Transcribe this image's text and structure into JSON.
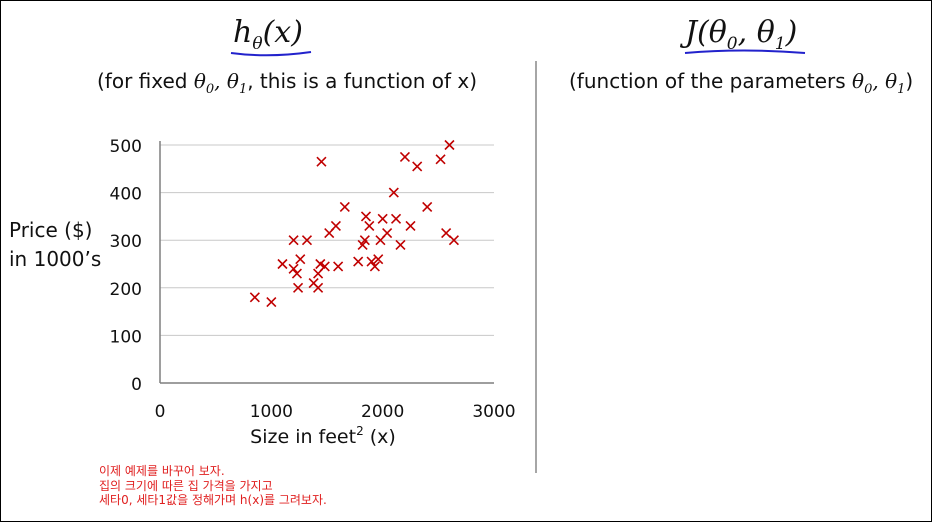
{
  "left_header": {
    "title": "hθ(x)",
    "subtitle_prefix": "(for fixed ",
    "subtitle_math": "θ0, θ1",
    "subtitle_suffix": ", this is a function of x)"
  },
  "right_header": {
    "title": "J(θ0, θ1)",
    "subtitle_text": "(function of the parameters ",
    "subtitle_math": "θ0, θ1",
    "subtitle_suffix": ")"
  },
  "note_lines": [
    "이제 예제를 바꾸어 보자.",
    "집의 크기에 따른 집 가격을 가지고",
    "세타0, 세타1값을 정해가며 h(x)를 그려보자."
  ],
  "colors": {
    "accent": "#2222cc",
    "marker": "#c00000",
    "grid": "#c8c8c8",
    "note": "#e02020"
  },
  "chart_data": {
    "type": "scatter",
    "xlabel": "Size in feet² (x)",
    "ylabel_lines": [
      "Price ($)",
      "in 1000’s"
    ],
    "xlim": [
      0,
      3000
    ],
    "ylim": [
      0,
      500
    ],
    "xticks": [
      0,
      1000,
      2000,
      3000
    ],
    "yticks": [
      0,
      100,
      200,
      300,
      400,
      500
    ],
    "grid": "horizontal",
    "marker": "x",
    "points": [
      [
        852,
        180
      ],
      [
        1000,
        170
      ],
      [
        1100,
        250
      ],
      [
        1200,
        300
      ],
      [
        1200,
        240
      ],
      [
        1230,
        230
      ],
      [
        1240,
        200
      ],
      [
        1260,
        260
      ],
      [
        1320,
        300
      ],
      [
        1380,
        210
      ],
      [
        1420,
        230
      ],
      [
        1420,
        200
      ],
      [
        1440,
        250
      ],
      [
        1450,
        465
      ],
      [
        1480,
        245
      ],
      [
        1520,
        315
      ],
      [
        1580,
        330
      ],
      [
        1600,
        245
      ],
      [
        1660,
        370
      ],
      [
        1780,
        255
      ],
      [
        1820,
        290
      ],
      [
        1840,
        300
      ],
      [
        1850,
        350
      ],
      [
        1880,
        330
      ],
      [
        1900,
        255
      ],
      [
        1930,
        245
      ],
      [
        1960,
        260
      ],
      [
        1980,
        300
      ],
      [
        2000,
        345
      ],
      [
        2040,
        315
      ],
      [
        2100,
        400
      ],
      [
        2120,
        345
      ],
      [
        2160,
        290
      ],
      [
        2200,
        475
      ],
      [
        2250,
        330
      ],
      [
        2310,
        455
      ],
      [
        2400,
        370
      ],
      [
        2520,
        470
      ],
      [
        2570,
        315
      ],
      [
        2600,
        500
      ],
      [
        2640,
        300
      ]
    ]
  }
}
